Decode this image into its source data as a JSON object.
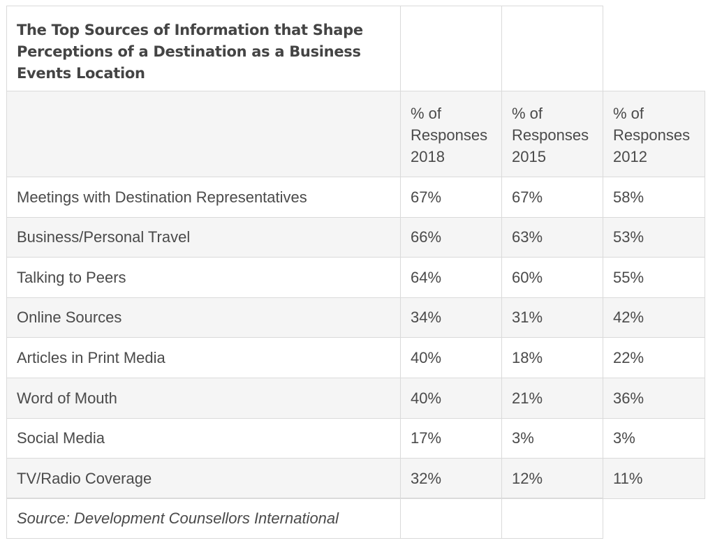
{
  "title": "The Top Sources of Information that Shape Perceptions of a Destination as a Business Events Location",
  "headers": [
    "% of Responses 2018",
    "% of Responses 2015",
    "% of Responses 2012"
  ],
  "rows": [
    {
      "label": "Meetings with Destination Representatives",
      "v2018": "67%",
      "v2015": "67%",
      "v2012": "58%"
    },
    {
      "label": "Business/Personal Travel",
      "v2018": "66%",
      "v2015": "63%",
      "v2012": "53%"
    },
    {
      "label": "Talking to Peers",
      "v2018": "64%",
      "v2015": "60%",
      "v2012": "55%"
    },
    {
      "label": "Online Sources",
      "v2018": "34%",
      "v2015": "31%",
      "v2012": "42%"
    },
    {
      "label": "Articles in Print Media",
      "v2018": "40%",
      "v2015": "18%",
      "v2012": "22%"
    },
    {
      "label": "Word of Mouth",
      "v2018": "40%",
      "v2015": "21%",
      "v2012": "36%"
    },
    {
      "label": "Social Media",
      "v2018": "17%",
      "v2015": "3%",
      "v2012": "3%"
    },
    {
      "label": "TV/Radio Coverage",
      "v2018": "32%",
      "v2015": "12%",
      "v2012": "11%"
    }
  ],
  "source": "Source: Development Counsellors International"
}
